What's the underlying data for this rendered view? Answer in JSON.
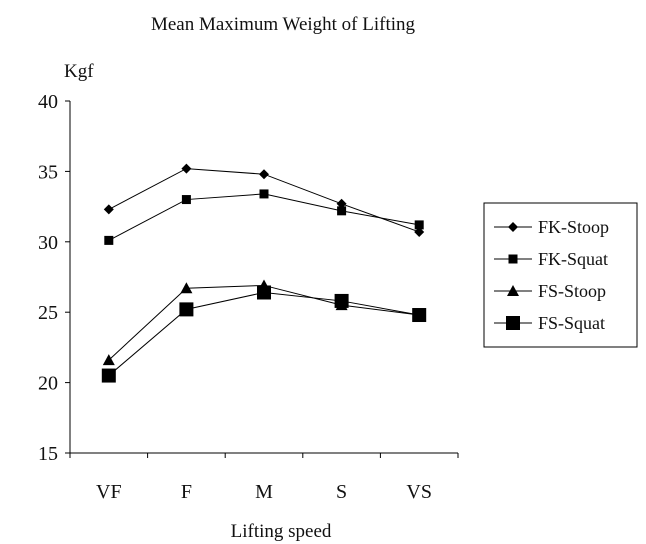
{
  "chart_data": {
    "type": "line",
    "title": "Mean Maximum Weight of Lifting",
    "ylabel": "Kgf",
    "xlabel": "Lifting speed",
    "categories": [
      "VF",
      "F",
      "M",
      "S",
      "VS"
    ],
    "ylim": [
      15,
      40
    ],
    "yticks": [
      15,
      20,
      25,
      30,
      35,
      40
    ],
    "grid": false,
    "legend_position": "right",
    "line_color": "#000000",
    "series": [
      {
        "name": "FK-Stoop",
        "marker": "diamond",
        "values": [
          32.3,
          35.2,
          34.8,
          32.7,
          30.7
        ]
      },
      {
        "name": "FK-Squat",
        "marker": "square-small",
        "values": [
          30.1,
          33.0,
          33.4,
          32.2,
          31.2
        ]
      },
      {
        "name": "FS-Stoop",
        "marker": "triangle",
        "values": [
          21.6,
          26.7,
          26.9,
          25.5,
          24.8
        ]
      },
      {
        "name": "FS-Squat",
        "marker": "square-large",
        "values": [
          20.5,
          25.2,
          26.4,
          25.8,
          24.8
        ]
      }
    ]
  }
}
